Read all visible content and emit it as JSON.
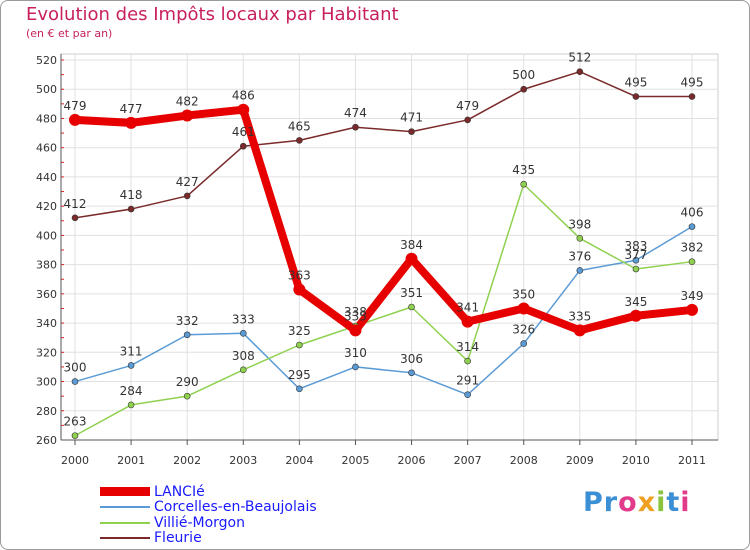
{
  "title": "Evolution des Impôts locaux par Habitant",
  "subtitle": "(en € et par an)",
  "logo_text": "Proxiti",
  "logo_colors": [
    "#3b8fd4",
    "#3b8fd4",
    "#e33b8c",
    "#f0a020",
    "#8ac43c",
    "#3b8fd4",
    "#e33b8c"
  ],
  "chart_data": {
    "type": "line",
    "title": "Evolution des Impôts locaux par Habitant",
    "subtitle": "(en € et par an)",
    "xlabel": "",
    "ylabel": "",
    "categories": [
      "2000",
      "2001",
      "2002",
      "2003",
      "2004",
      "2005",
      "2006",
      "2007",
      "2008",
      "2009",
      "2010",
      "2011"
    ],
    "ylim": [
      260,
      520
    ],
    "yticks": [
      260,
      280,
      300,
      320,
      340,
      360,
      380,
      400,
      420,
      440,
      460,
      480,
      500,
      520
    ],
    "grid": true,
    "legend_position": "bottom-left",
    "series": [
      {
        "name": "LANCIé",
        "color": "#e60000",
        "emphasis": true,
        "values": [
          479,
          477,
          482,
          486,
          363,
          335,
          384,
          341,
          350,
          335,
          345,
          349
        ]
      },
      {
        "name": "Corcelles-en-Beaujolais",
        "color": "#5b9bd5",
        "emphasis": false,
        "values": [
          300,
          311,
          332,
          333,
          295,
          310,
          306,
          291,
          326,
          376,
          383,
          406
        ]
      },
      {
        "name": "Villié-Morgon",
        "color": "#8fd14f",
        "emphasis": false,
        "values": [
          263,
          284,
          290,
          308,
          325,
          338,
          351,
          314,
          435,
          398,
          377,
          382
        ]
      },
      {
        "name": "Fleurie",
        "color": "#7a2a2a",
        "emphasis": false,
        "values": [
          412,
          418,
          427,
          461,
          465,
          474,
          471,
          479,
          500,
          512,
          495,
          495
        ]
      }
    ]
  }
}
